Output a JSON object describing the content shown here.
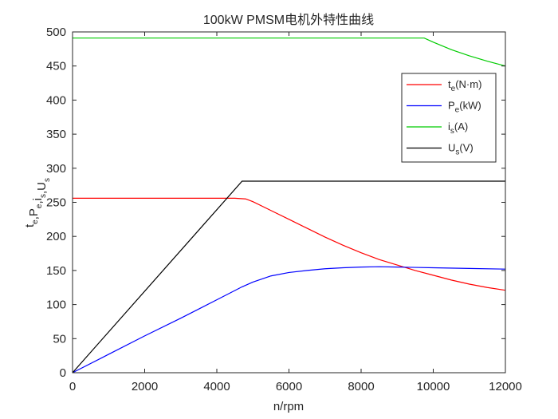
{
  "chart_data": {
    "type": "line",
    "title": "100kW PMSM电机外特性曲线",
    "xlabel": "n/rpm",
    "ylabel": {
      "parts": [
        {
          "t": "t",
          "sub": "e"
        },
        {
          "t": ",P",
          "sub": "e"
        },
        {
          "t": ",i",
          "sub": "s"
        },
        {
          "t": ",U",
          "sub": "s"
        }
      ]
    },
    "xlim": [
      0,
      12000
    ],
    "ylim": [
      0,
      500
    ],
    "xticks": [
      0,
      2000,
      4000,
      6000,
      8000,
      10000,
      12000
    ],
    "yticks": [
      0,
      50,
      100,
      150,
      200,
      250,
      300,
      350,
      400,
      450,
      500
    ],
    "grid": false,
    "legend_position": "upper-right",
    "series": [
      {
        "name": "t_e(N·m)",
        "label": {
          "base": "t",
          "sub": "e",
          "rest": "(N·m)"
        },
        "color": "#ff0000",
        "x": [
          0,
          4500,
          4800,
          5000,
          5500,
          6000,
          6500,
          7000,
          7500,
          8000,
          8500,
          9000,
          9500,
          10000,
          10500,
          11000,
          11500,
          12000
        ],
        "y": [
          256,
          256,
          255,
          251,
          238,
          225,
          212,
          199,
          187,
          176,
          166,
          158,
          150,
          143,
          136,
          130,
          125,
          121
        ]
      },
      {
        "name": "P_e(kW)",
        "label": {
          "base": "P",
          "sub": "e",
          "rest": "(kW)"
        },
        "color": "#0000ff",
        "x": [
          0,
          1000,
          2000,
          3000,
          4000,
          4700,
          5000,
          5500,
          6000,
          6500,
          7000,
          7500,
          8000,
          8500,
          9000,
          9500,
          10000,
          11000,
          12000
        ],
        "y": [
          0,
          27,
          54,
          80,
          107,
          126,
          133,
          142,
          147,
          150,
          152.5,
          154,
          155,
          155.5,
          155,
          154.5,
          154,
          153,
          152
        ]
      },
      {
        "name": "i_s(A)",
        "label": {
          "base": "i",
          "sub": "s",
          "rest": "(A)"
        },
        "color": "#00cc00",
        "x": [
          0,
          9750,
          10000,
          10500,
          11000,
          11500,
          12000
        ],
        "y": [
          491,
          491,
          485,
          474,
          465,
          457,
          450
        ]
      },
      {
        "name": "U_s(V)",
        "label": {
          "base": "U",
          "sub": "s",
          "rest": "(V)"
        },
        "color": "#000000",
        "x": [
          0,
          4700,
          12000
        ],
        "y": [
          0,
          281,
          281
        ]
      }
    ]
  }
}
